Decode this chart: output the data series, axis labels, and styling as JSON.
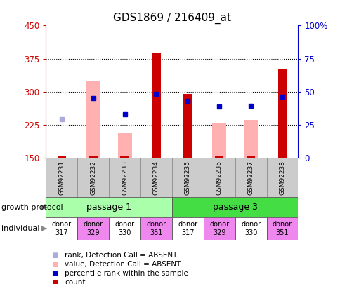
{
  "title": "GDS1869 / 216409_at",
  "samples": [
    "GSM92231",
    "GSM92232",
    "GSM92233",
    "GSM92234",
    "GSM92235",
    "GSM92236",
    "GSM92237",
    "GSM92238"
  ],
  "count_values": [
    155,
    155,
    155,
    387,
    295,
    155,
    155,
    350
  ],
  "pink_bar_values": [
    null,
    325,
    205,
    null,
    null,
    230,
    235,
    null
  ],
  "blue_sq_values": [
    null,
    285,
    248,
    294,
    278,
    266,
    268,
    288
  ],
  "light_blue_sq_values": [
    237,
    null,
    null,
    null,
    null,
    null,
    null,
    null
  ],
  "ylim_left": [
    150,
    450
  ],
  "ylim_right": [
    0,
    100
  ],
  "yticks_left": [
    150,
    225,
    300,
    375,
    450
  ],
  "yticks_right": [
    0,
    25,
    50,
    75,
    100
  ],
  "yticklabels_right": [
    "0",
    "25",
    "50",
    "75",
    "100%"
  ],
  "passage_groups": [
    {
      "label": "passage 1",
      "start": 0,
      "end": 3,
      "color": "#aaffaa"
    },
    {
      "label": "passage 3",
      "start": 4,
      "end": 7,
      "color": "#44dd44"
    }
  ],
  "individual_colors": [
    "#ffffff",
    "#ee88ee",
    "#ffffff",
    "#ee88ee",
    "#ffffff",
    "#ee88ee",
    "#ffffff",
    "#ee88ee"
  ],
  "individual_labels": [
    "donor\n317",
    "donor\n329",
    "donor\n330",
    "donor\n351",
    "donor\n317",
    "donor\n329",
    "donor\n330",
    "donor\n351"
  ],
  "color_count": "#cc0000",
  "color_pink_bar": "#ffb0b0",
  "color_blue_sq": "#0000cc",
  "color_light_blue_sq": "#aaaadd",
  "left_axis_color": "#cc0000",
  "right_axis_color": "#0000cc",
  "sample_bg_color": "#cccccc",
  "grid_yticks": [
    225,
    300,
    375
  ],
  "legend_items": [
    {
      "color": "#cc0000",
      "label": "count"
    },
    {
      "color": "#0000cc",
      "label": "percentile rank within the sample"
    },
    {
      "color": "#ffb0b0",
      "label": "value, Detection Call = ABSENT"
    },
    {
      "color": "#aaaadd",
      "label": "rank, Detection Call = ABSENT"
    }
  ]
}
